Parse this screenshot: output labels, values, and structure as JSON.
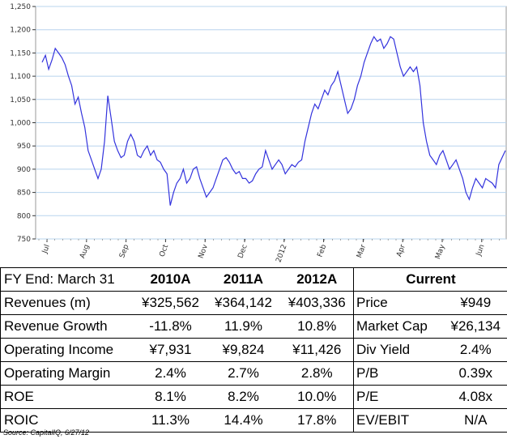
{
  "chart_data": {
    "type": "line",
    "title": "",
    "xlabel": "",
    "ylabel": "",
    "ylim": [
      750,
      1250
    ],
    "y_ticks": [
      750,
      800,
      850,
      900,
      950,
      1000,
      1050,
      1100,
      1150,
      1200,
      1250
    ],
    "y_tick_labels": [
      "750",
      "800",
      "850",
      "900",
      "950",
      "1,000",
      "1,050",
      "1,100",
      "1,150",
      "1,200",
      "1,250"
    ],
    "x_tick_labels": [
      "Jul",
      "Aug",
      "Sep",
      "Oct",
      "Nov",
      "Dec",
      "2012",
      "Feb",
      "Mar",
      "Apr",
      "May",
      "Jun"
    ],
    "grid": true,
    "line_color": "#3333dd",
    "series": [
      {
        "values": [
          1130,
          1145,
          1115,
          1135,
          1160,
          1150,
          1140,
          1125,
          1100,
          1080,
          1040,
          1055,
          1020,
          990,
          940,
          920,
          900,
          880,
          900,
          960,
          1058,
          1010,
          960,
          940,
          925,
          930,
          960,
          975,
          960,
          930,
          925,
          940,
          950,
          930,
          940,
          920,
          915,
          900,
          890,
          822,
          850,
          870,
          880,
          900,
          870,
          880,
          900,
          905,
          880,
          860,
          840,
          850,
          860,
          880,
          900,
          920,
          925,
          915,
          900,
          890,
          895,
          880,
          880,
          870,
          875,
          890,
          900,
          905,
          940,
          920,
          900,
          910,
          920,
          910,
          890,
          900,
          910,
          905,
          915,
          920,
          960,
          990,
          1020,
          1040,
          1030,
          1050,
          1070,
          1060,
          1080,
          1090,
          1110,
          1080,
          1050,
          1020,
          1030,
          1050,
          1080,
          1100,
          1130,
          1150,
          1170,
          1185,
          1175,
          1180,
          1160,
          1170,
          1185,
          1180,
          1150,
          1120,
          1100,
          1110,
          1120,
          1110,
          1120,
          1080,
          1000,
          960,
          930,
          920,
          910,
          930,
          940,
          920,
          900,
          910,
          920,
          900,
          880,
          850,
          835,
          860,
          880,
          870,
          860,
          880,
          875,
          870,
          860,
          910,
          925,
          940
        ]
      }
    ]
  },
  "table": {
    "header": {
      "label": "FY End: March 31",
      "cols": [
        "2010A",
        "2011A",
        "2012A"
      ],
      "current": "Current"
    },
    "rows": [
      {
        "label": "Revenues (m)",
        "values": [
          "¥325,562",
          "¥364,142",
          "¥403,336"
        ],
        "cur_label": "Price",
        "cur_value": "¥949"
      },
      {
        "label": "Revenue Growth",
        "values": [
          "-11.8%",
          "11.9%",
          "10.8%"
        ],
        "cur_label": "Market Cap",
        "cur_value": "¥26,134"
      },
      {
        "label": "Operating Income",
        "values": [
          "¥7,931",
          "¥9,824",
          "¥11,426"
        ],
        "cur_label": "Div Yield",
        "cur_value": "2.4%"
      },
      {
        "label": "Operating Margin",
        "values": [
          "2.4%",
          "2.7%",
          "2.8%"
        ],
        "cur_label": "P/B",
        "cur_value": "0.39x"
      },
      {
        "label": "ROE",
        "values": [
          "8.1%",
          "8.2%",
          "10.0%"
        ],
        "cur_label": "P/E",
        "cur_value": "4.08x"
      },
      {
        "label": "ROIC",
        "values": [
          "11.3%",
          "14.4%",
          "17.8%"
        ],
        "cur_label": "EV/EBIT",
        "cur_value": "N/A"
      }
    ]
  },
  "source": "Source: CapitalIQ, 6/27/12"
}
